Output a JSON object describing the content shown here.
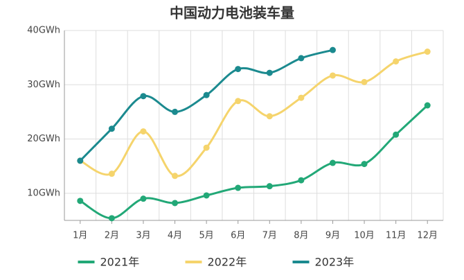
{
  "chart_data": {
    "type": "line",
    "title": "中国动力电池装车量",
    "categories": [
      "1月",
      "2月",
      "3月",
      "4月",
      "5月",
      "6月",
      "7月",
      "8月",
      "9月",
      "10月",
      "11月",
      "12月"
    ],
    "series": [
      {
        "name": "2021年",
        "color": "#22a877",
        "values": [
          8.6,
          5.4,
          9.0,
          8.2,
          9.6,
          11.0,
          11.3,
          12.4,
          15.6,
          15.4,
          20.8,
          26.2
        ]
      },
      {
        "name": "2022年",
        "color": "#f5d46c",
        "values": [
          16.0,
          13.6,
          21.4,
          13.2,
          18.4,
          27.0,
          24.2,
          27.6,
          31.7,
          30.5,
          34.3,
          36.1
        ]
      },
      {
        "name": "2023年",
        "color": "#1b8a8f",
        "values": [
          16.0,
          21.9,
          27.9,
          25.0,
          28.1,
          32.9,
          32.2,
          34.9,
          36.4,
          null,
          null,
          null
        ]
      }
    ],
    "ylim": [
      5,
      40
    ],
    "yticks": [
      {
        "value": 10,
        "label": "10GWh"
      },
      {
        "value": 20,
        "label": "20GWh"
      },
      {
        "value": 30,
        "label": "30GWh"
      },
      {
        "value": 40,
        "label": "40GWh"
      }
    ],
    "grid": true,
    "legend": "bottom"
  }
}
